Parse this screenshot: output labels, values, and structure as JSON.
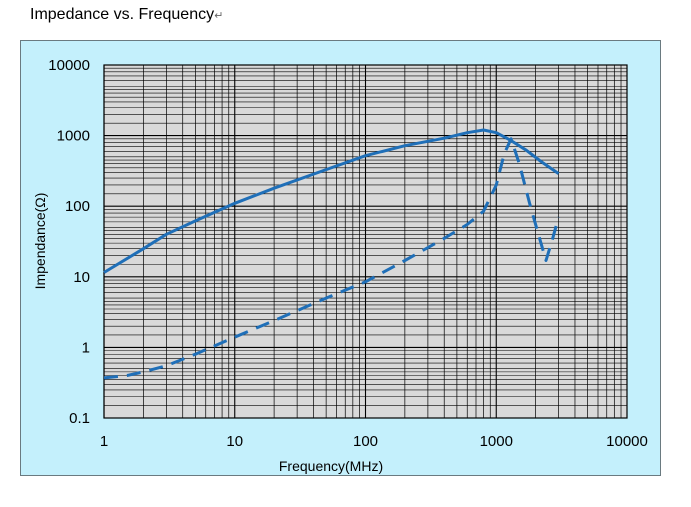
{
  "title": "Impedance vs. Frequency",
  "title_mark": "↵",
  "chart_data": {
    "type": "line",
    "title": "Impedance vs. Frequency",
    "xlabel": "Frequency(MHz)",
    "ylabel": "Impendance(Ω)",
    "x_scale": "log",
    "y_scale": "log",
    "xlim": [
      1,
      10000
    ],
    "ylim": [
      0.1,
      10000
    ],
    "x_ticks": [
      "1",
      "10",
      "100",
      "1000",
      "10000"
    ],
    "y_ticks": [
      "0.1",
      "1",
      "10",
      "100",
      "1000",
      "10000"
    ],
    "grid": true,
    "legend": "none",
    "colors": {
      "series": "#1f6fb8",
      "plot_bg": "#d9d9d9",
      "panel_bg": "#c4f0fc",
      "grid": "#000000"
    },
    "series": [
      {
        "style": "solid",
        "x": [
          1,
          2,
          3,
          5,
          10,
          20,
          50,
          100,
          200,
          400,
          600,
          800,
          1000,
          1300,
          1700,
          2200,
          3000
        ],
        "y": [
          11.5,
          25,
          40,
          62,
          110,
          180,
          330,
          520,
          720,
          920,
          1100,
          1200,
          1100,
          850,
          620,
          430,
          290
        ]
      },
      {
        "style": "dashed",
        "x": [
          1,
          1.5,
          2,
          3,
          5,
          10,
          20,
          50,
          100,
          200,
          400,
          600,
          800,
          1000,
          1150,
          1300,
          1500,
          1800,
          2100,
          2400,
          2700,
          3000
        ],
        "y": [
          0.37,
          0.4,
          0.45,
          0.55,
          0.8,
          1.4,
          2.4,
          5,
          8.5,
          17,
          35,
          55,
          85,
          200,
          550,
          900,
          400,
          110,
          40,
          17,
          35,
          70
        ]
      }
    ]
  }
}
